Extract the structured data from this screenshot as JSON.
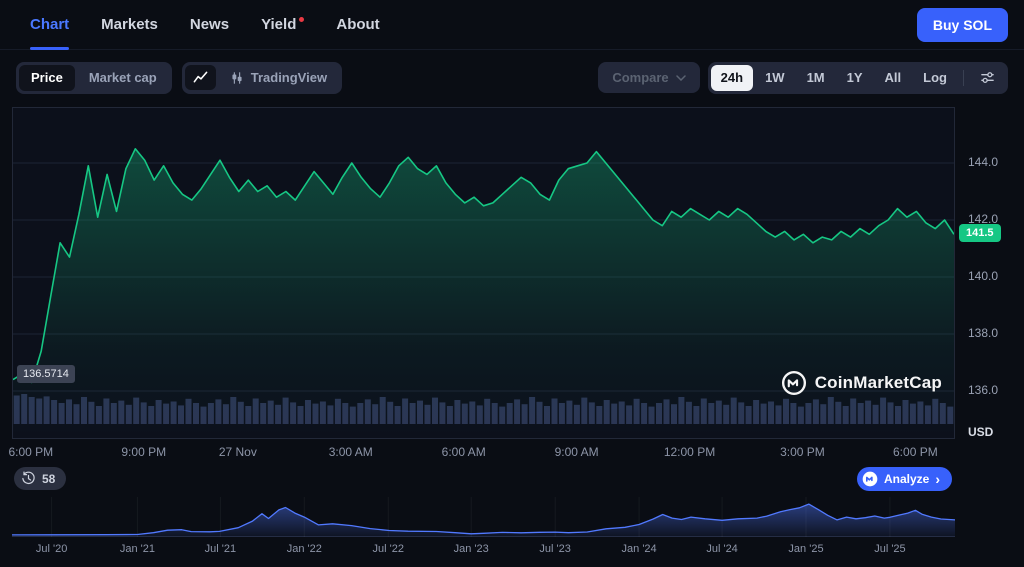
{
  "nav": {
    "tabs": [
      {
        "label": "Chart",
        "active": true
      },
      {
        "label": "Markets",
        "active": false
      },
      {
        "label": "News",
        "active": false
      },
      {
        "label": "Yield",
        "active": false,
        "notification_dot": true
      },
      {
        "label": "About",
        "active": false
      }
    ],
    "buy_button": "Buy SOL"
  },
  "toolbar": {
    "price_label": "Price",
    "market_cap_label": "Market cap",
    "tradingview_label": "TradingView",
    "compare_label": "Compare",
    "ranges": [
      "24h",
      "1W",
      "1M",
      "1Y",
      "All",
      "Log"
    ],
    "active_range": "24h"
  },
  "chart": {
    "current_price_label": "141.5",
    "open_price_label": "136.5714",
    "y_unit": "USD",
    "watermark": "CoinMarketCap",
    "history_count": "58",
    "analyze_label": "Analyze"
  },
  "colors": {
    "green": "#16c784",
    "blue": "#3861fb",
    "mini_line": "#5179ff",
    "volume": "#2b3554",
    "grid": "#1c2334",
    "axis_text": "#8d95a8"
  },
  "chart_data": [
    {
      "type": "area",
      "name": "sol-price-24h",
      "title": "SOL price (24h)",
      "unit": "USD",
      "ylim": [
        134.3,
        145.9
      ],
      "current_price": 141.5,
      "open_price": 136.5714,
      "y_ticks": [
        {
          "value": 144,
          "label": "144.0"
        },
        {
          "value": 142,
          "label": "142.0"
        },
        {
          "value": 140,
          "label": "140.0"
        },
        {
          "value": 138,
          "label": "138.0"
        },
        {
          "value": 136,
          "label": "136.0"
        }
      ],
      "x_labels": [
        {
          "label": "6:00 PM",
          "pos": 0.02
        },
        {
          "label": "9:00 PM",
          "pos": 0.14
        },
        {
          "label": "27 Nov",
          "pos": 0.24
        },
        {
          "label": "3:00 AM",
          "pos": 0.36
        },
        {
          "label": "6:00 AM",
          "pos": 0.48
        },
        {
          "label": "9:00 AM",
          "pos": 0.6
        },
        {
          "label": "12:00 PM",
          "pos": 0.72
        },
        {
          "label": "3:00 PM",
          "pos": 0.84
        },
        {
          "label": "6:00 PM",
          "pos": 0.96
        }
      ],
      "prices": [
        136.4,
        136.6,
        136.3,
        137.4,
        139.3,
        141.2,
        140.7,
        142.2,
        143.9,
        142.1,
        143.6,
        142.3,
        143.8,
        144.5,
        144.1,
        143.4,
        143.9,
        143.3,
        142.9,
        142.7,
        143.1,
        143.6,
        144.1,
        143.5,
        143.0,
        143.4,
        143.0,
        143.2,
        142.8,
        143.0,
        142.7,
        143.2,
        143.7,
        143.3,
        142.9,
        143.5,
        144.0,
        143.5,
        143.1,
        142.8,
        143.3,
        143.9,
        144.2,
        143.8,
        143.6,
        143.9,
        143.3,
        142.9,
        142.6,
        142.8,
        142.5,
        142.6,
        142.9,
        143.2,
        143.5,
        143.3,
        142.9,
        142.7,
        143.4,
        143.8,
        143.9,
        144.0,
        144.4,
        144.0,
        143.6,
        143.2,
        142.8,
        142.4,
        142.0,
        141.8,
        142.3,
        142.1,
        142.4,
        142.2,
        142.0,
        142.3,
        142.1,
        142.4,
        142.2,
        141.9,
        141.6,
        141.4,
        141.6,
        141.3,
        141.5,
        141.2,
        141.4,
        141.3,
        141.6,
        141.4,
        141.7,
        141.5,
        141.8,
        142.0,
        142.4,
        142.1,
        142.3,
        141.9,
        141.7,
        142.0,
        141.5
      ]
    },
    {
      "type": "bar",
      "name": "volume-24h",
      "title": "Trading volume (relative)",
      "values": [
        0.95,
        1.0,
        0.9,
        0.85,
        0.92,
        0.8,
        0.7,
        0.82,
        0.66,
        0.9,
        0.74,
        0.6,
        0.85,
        0.7,
        0.78,
        0.64,
        0.88,
        0.72,
        0.6,
        0.8,
        0.68,
        0.75,
        0.62,
        0.84,
        0.7,
        0.58,
        0.7,
        0.82,
        0.66,
        0.9,
        0.74,
        0.6,
        0.85,
        0.7,
        0.78,
        0.64,
        0.88,
        0.72,
        0.6,
        0.8,
        0.68,
        0.75,
        0.62,
        0.84,
        0.7,
        0.58,
        0.7,
        0.82,
        0.66,
        0.9,
        0.74,
        0.6,
        0.85,
        0.7,
        0.78,
        0.64,
        0.88,
        0.72,
        0.6,
        0.8,
        0.68,
        0.75,
        0.62,
        0.84,
        0.7,
        0.58,
        0.7,
        0.82,
        0.66,
        0.9,
        0.74,
        0.6,
        0.85,
        0.7,
        0.78,
        0.64,
        0.88,
        0.72,
        0.6,
        0.8,
        0.68,
        0.75,
        0.62,
        0.84,
        0.7,
        0.58,
        0.7,
        0.82,
        0.66,
        0.9,
        0.74,
        0.6,
        0.85,
        0.7,
        0.78,
        0.64,
        0.88,
        0.72,
        0.6,
        0.8,
        0.68,
        0.75,
        0.62,
        0.84,
        0.7,
        0.58,
        0.7,
        0.82,
        0.66,
        0.9,
        0.74,
        0.6,
        0.85,
        0.7,
        0.78,
        0.64,
        0.88,
        0.72,
        0.6,
        0.8,
        0.68,
        0.75,
        0.62,
        0.84,
        0.7,
        0.58
      ]
    },
    {
      "type": "area",
      "name": "sol-price-history",
      "title": "SOL all-time price history (USD)",
      "ylim": [
        0,
        300
      ],
      "x_labels": [
        {
          "label": "Jul '20",
          "pos": 0.042
        },
        {
          "label": "Jan '21",
          "pos": 0.133
        },
        {
          "label": "Jul '21",
          "pos": 0.221
        },
        {
          "label": "Jan '22",
          "pos": 0.31
        },
        {
          "label": "Jul '22",
          "pos": 0.399
        },
        {
          "label": "Jan '23",
          "pos": 0.487
        },
        {
          "label": "Jul '23",
          "pos": 0.576
        },
        {
          "label": "Jan '24",
          "pos": 0.665
        },
        {
          "label": "Jul '24",
          "pos": 0.753
        },
        {
          "label": "Jan '25",
          "pos": 0.842
        },
        {
          "label": "Jul '25",
          "pos": 0.931
        }
      ],
      "points": [
        [
          0,
          1
        ],
        [
          0.04,
          2
        ],
        [
          0.1,
          3
        ],
        [
          0.133,
          5
        ],
        [
          0.15,
          22
        ],
        [
          0.165,
          45
        ],
        [
          0.18,
          50
        ],
        [
          0.19,
          32
        ],
        [
          0.21,
          30
        ],
        [
          0.22,
          34
        ],
        [
          0.24,
          68
        ],
        [
          0.255,
          130
        ],
        [
          0.265,
          200
        ],
        [
          0.272,
          155
        ],
        [
          0.283,
          235
        ],
        [
          0.29,
          258
        ],
        [
          0.3,
          205
        ],
        [
          0.31,
          168
        ],
        [
          0.325,
          95
        ],
        [
          0.34,
          105
        ],
        [
          0.36,
          88
        ],
        [
          0.38,
          60
        ],
        [
          0.4,
          42
        ],
        [
          0.42,
          36
        ],
        [
          0.45,
          33
        ],
        [
          0.47,
          22
        ],
        [
          0.487,
          11
        ],
        [
          0.5,
          16
        ],
        [
          0.52,
          24
        ],
        [
          0.54,
          21
        ],
        [
          0.56,
          25
        ],
        [
          0.576,
          27
        ],
        [
          0.59,
          22
        ],
        [
          0.61,
          28
        ],
        [
          0.63,
          58
        ],
        [
          0.65,
          72
        ],
        [
          0.665,
          98
        ],
        [
          0.68,
          150
        ],
        [
          0.69,
          192
        ],
        [
          0.7,
          158
        ],
        [
          0.71,
          145
        ],
        [
          0.72,
          168
        ],
        [
          0.735,
          152
        ],
        [
          0.753,
          138
        ],
        [
          0.77,
          152
        ],
        [
          0.79,
          158
        ],
        [
          0.8,
          176
        ],
        [
          0.815,
          218
        ],
        [
          0.825,
          238
        ],
        [
          0.835,
          255
        ],
        [
          0.845,
          290
        ],
        [
          0.855,
          238
        ],
        [
          0.865,
          185
        ],
        [
          0.875,
          142
        ],
        [
          0.885,
          168
        ],
        [
          0.895,
          152
        ],
        [
          0.905,
          162
        ],
        [
          0.915,
          178
        ],
        [
          0.925,
          158
        ],
        [
          0.931,
          166
        ],
        [
          0.94,
          185
        ],
        [
          0.95,
          205
        ],
        [
          0.958,
          232
        ],
        [
          0.965,
          195
        ],
        [
          0.975,
          168
        ],
        [
          0.985,
          150
        ],
        [
          1,
          142
        ]
      ]
    }
  ]
}
